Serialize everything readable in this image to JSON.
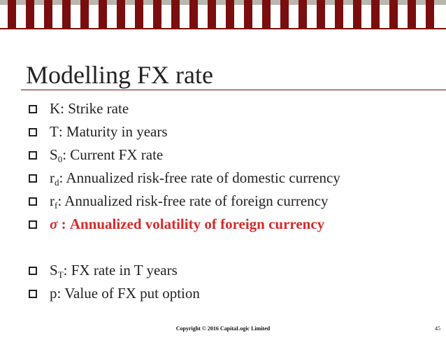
{
  "slide": {
    "title": "Modelling FX rate",
    "bullets": [
      {
        "main": "K",
        "sub": "",
        "rest": ": Strike rate"
      },
      {
        "main": "T",
        "sub": "",
        "rest": ": Maturity in years"
      },
      {
        "main": "S",
        "sub": "0",
        "rest": ": Current FX rate"
      },
      {
        "main": "r",
        "sub": "d",
        "rest": ": Annualized risk-free rate of domestic currency"
      },
      {
        "main": "r",
        "sub": "f",
        "rest": ": Annualized risk-free rate of foreign currency"
      },
      {
        "symbol": "σ",
        "rest": " : Annualized volatility of foreign currency",
        "color": "#d62b2b"
      },
      {
        "main": "S",
        "sub": "T",
        "rest": ": FX rate in T years"
      },
      {
        "main": "p",
        "sub": "",
        "rest": ": Value of FX put option"
      }
    ]
  },
  "footer": {
    "copyright": "Copyright © 2016 CapitaLogic Limited",
    "page_number": "45"
  },
  "colors": {
    "accent": "#7a0e0e",
    "band": "#b9b7ad",
    "highlight": "#d62b2b",
    "text": "#222222"
  },
  "icons": {
    "bullet": "square-bullet-icon"
  }
}
